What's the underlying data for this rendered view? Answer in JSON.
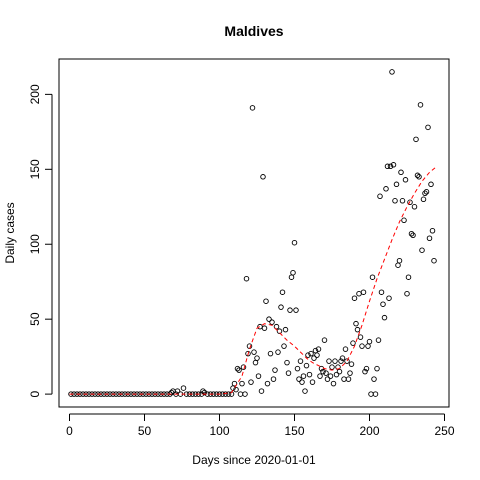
{
  "chart_data": {
    "type": "scatter",
    "title": "Maldives",
    "xlabel": "Days since 2020-01-01",
    "ylabel": "Daily cases",
    "xlim": [
      -7,
      253
    ],
    "ylim": [
      -8.6,
      223.6
    ],
    "xticks": [
      0,
      50,
      100,
      150,
      200,
      250
    ],
    "yticks": [
      0,
      50,
      100,
      150,
      200
    ],
    "grid": false,
    "legend": "none",
    "point_style": "open-circle",
    "trend_color": "#ff0000",
    "points": [
      [
        1,
        0
      ],
      [
        3,
        0
      ],
      [
        5,
        0
      ],
      [
        7,
        0
      ],
      [
        9,
        0
      ],
      [
        11,
        0
      ],
      [
        13,
        0
      ],
      [
        15,
        0
      ],
      [
        17,
        0
      ],
      [
        19,
        0
      ],
      [
        21,
        0
      ],
      [
        23,
        0
      ],
      [
        25,
        0
      ],
      [
        27,
        0
      ],
      [
        29,
        0
      ],
      [
        31,
        0
      ],
      [
        33,
        0
      ],
      [
        35,
        0
      ],
      [
        37,
        0
      ],
      [
        39,
        0
      ],
      [
        41,
        0
      ],
      [
        43,
        0
      ],
      [
        45,
        0
      ],
      [
        47,
        0
      ],
      [
        49,
        0
      ],
      [
        51,
        0
      ],
      [
        53,
        0
      ],
      [
        55,
        0
      ],
      [
        57,
        0
      ],
      [
        59,
        0
      ],
      [
        61,
        0
      ],
      [
        63,
        0
      ],
      [
        65,
        0
      ],
      [
        67,
        0
      ],
      [
        68,
        1
      ],
      [
        69,
        2
      ],
      [
        71,
        0
      ],
      [
        72,
        2
      ],
      [
        74,
        0
      ],
      [
        76,
        4
      ],
      [
        78,
        0
      ],
      [
        80,
        0
      ],
      [
        82,
        0
      ],
      [
        84,
        0
      ],
      [
        86,
        0
      ],
      [
        88,
        0
      ],
      [
        89,
        2
      ],
      [
        90,
        1
      ],
      [
        92,
        0
      ],
      [
        94,
        0
      ],
      [
        96,
        0
      ],
      [
        98,
        0
      ],
      [
        100,
        0
      ],
      [
        102,
        0
      ],
      [
        104,
        0
      ],
      [
        106,
        0
      ],
      [
        108,
        0
      ],
      [
        109,
        4
      ],
      [
        110,
        7
      ],
      [
        111,
        3
      ],
      [
        112,
        17
      ],
      [
        113,
        16
      ],
      [
        114,
        0
      ],
      [
        115,
        7
      ],
      [
        116,
        18
      ],
      [
        117,
        0
      ],
      [
        118,
        77
      ],
      [
        119,
        27
      ],
      [
        120,
        32
      ],
      [
        121,
        8
      ],
      [
        122,
        191
      ],
      [
        123,
        28
      ],
      [
        124,
        21
      ],
      [
        125,
        24
      ],
      [
        126,
        12
      ],
      [
        127,
        45
      ],
      [
        128,
        2
      ],
      [
        129,
        145
      ],
      [
        130,
        44
      ],
      [
        131,
        62
      ],
      [
        132,
        7
      ],
      [
        133,
        50
      ],
      [
        134,
        27
      ],
      [
        135,
        48
      ],
      [
        136,
        10
      ],
      [
        137,
        16
      ],
      [
        138,
        45
      ],
      [
        139,
        28
      ],
      [
        140,
        42
      ],
      [
        141,
        58
      ],
      [
        142,
        68
      ],
      [
        143,
        32
      ],
      [
        144,
        43
      ],
      [
        145,
        21
      ],
      [
        146,
        14
      ],
      [
        147,
        56
      ],
      [
        148,
        78
      ],
      [
        149,
        81
      ],
      [
        150,
        101
      ],
      [
        151,
        56
      ],
      [
        152,
        17
      ],
      [
        153,
        10
      ],
      [
        154,
        22
      ],
      [
        155,
        8
      ],
      [
        156,
        12
      ],
      [
        157,
        2
      ],
      [
        158,
        19
      ],
      [
        159,
        26
      ],
      [
        160,
        13
      ],
      [
        161,
        27
      ],
      [
        162,
        8
      ],
      [
        163,
        24
      ],
      [
        164,
        29
      ],
      [
        165,
        26
      ],
      [
        166,
        30
      ],
      [
        167,
        12
      ],
      [
        168,
        17
      ],
      [
        169,
        15
      ],
      [
        170,
        36
      ],
      [
        171,
        14
      ],
      [
        172,
        10
      ],
      [
        173,
        22
      ],
      [
        174,
        12
      ],
      [
        175,
        18
      ],
      [
        176,
        7
      ],
      [
        177,
        22
      ],
      [
        178,
        13
      ],
      [
        179,
        18
      ],
      [
        180,
        15
      ],
      [
        181,
        22
      ],
      [
        182,
        24
      ],
      [
        183,
        10
      ],
      [
        184,
        30
      ],
      [
        185,
        22
      ],
      [
        186,
        10
      ],
      [
        187,
        14
      ],
      [
        188,
        20
      ],
      [
        189,
        34
      ],
      [
        190,
        64
      ],
      [
        191,
        47
      ],
      [
        192,
        43
      ],
      [
        193,
        67
      ],
      [
        194,
        38
      ],
      [
        195,
        32
      ],
      [
        196,
        68
      ],
      [
        197,
        15
      ],
      [
        198,
        17
      ],
      [
        199,
        32
      ],
      [
        200,
        35
      ],
      [
        201,
        0
      ],
      [
        202,
        78
      ],
      [
        203,
        10
      ],
      [
        204,
        0
      ],
      [
        205,
        17
      ],
      [
        206,
        36
      ],
      [
        207,
        132
      ],
      [
        208,
        68
      ],
      [
        209,
        60
      ],
      [
        210,
        51
      ],
      [
        211,
        137
      ],
      [
        212,
        152
      ],
      [
        213,
        64
      ],
      [
        214,
        152
      ],
      [
        215,
        215
      ],
      [
        216,
        153
      ],
      [
        217,
        129
      ],
      [
        218,
        140
      ],
      [
        219,
        86
      ],
      [
        220,
        89
      ],
      [
        221,
        148
      ],
      [
        222,
        129
      ],
      [
        223,
        116
      ],
      [
        224,
        143
      ],
      [
        225,
        67
      ],
      [
        226,
        78
      ],
      [
        227,
        128
      ],
      [
        228,
        107
      ],
      [
        229,
        106
      ],
      [
        230,
        125
      ],
      [
        231,
        170
      ],
      [
        232,
        146
      ],
      [
        233,
        145
      ],
      [
        234,
        193
      ],
      [
        235,
        96
      ],
      [
        236,
        130
      ],
      [
        237,
        134
      ],
      [
        238,
        135
      ],
      [
        239,
        178
      ],
      [
        240,
        104
      ],
      [
        241,
        140
      ],
      [
        242,
        109
      ],
      [
        243,
        89
      ]
    ],
    "trend": [
      [
        0,
        0
      ],
      [
        20,
        0
      ],
      [
        40,
        0
      ],
      [
        60,
        0
      ],
      [
        80,
        0
      ],
      [
        100,
        0
      ],
      [
        108,
        1
      ],
      [
        115,
        12
      ],
      [
        120,
        30
      ],
      [
        125,
        44
      ],
      [
        130,
        47
      ],
      [
        135,
        46
      ],
      [
        140,
        41
      ],
      [
        145,
        36
      ],
      [
        150,
        32
      ],
      [
        154,
        28
      ],
      [
        158,
        24
      ],
      [
        162,
        21
      ],
      [
        166,
        19
      ],
      [
        170,
        17
      ],
      [
        175,
        16
      ],
      [
        180,
        17
      ],
      [
        185,
        22
      ],
      [
        190,
        32
      ],
      [
        195,
        46
      ],
      [
        200,
        62
      ],
      [
        205,
        77
      ],
      [
        210,
        90
      ],
      [
        215,
        103
      ],
      [
        220,
        115
      ],
      [
        225,
        125
      ],
      [
        230,
        134
      ],
      [
        235,
        142
      ],
      [
        240,
        148
      ],
      [
        245,
        152
      ]
    ]
  }
}
